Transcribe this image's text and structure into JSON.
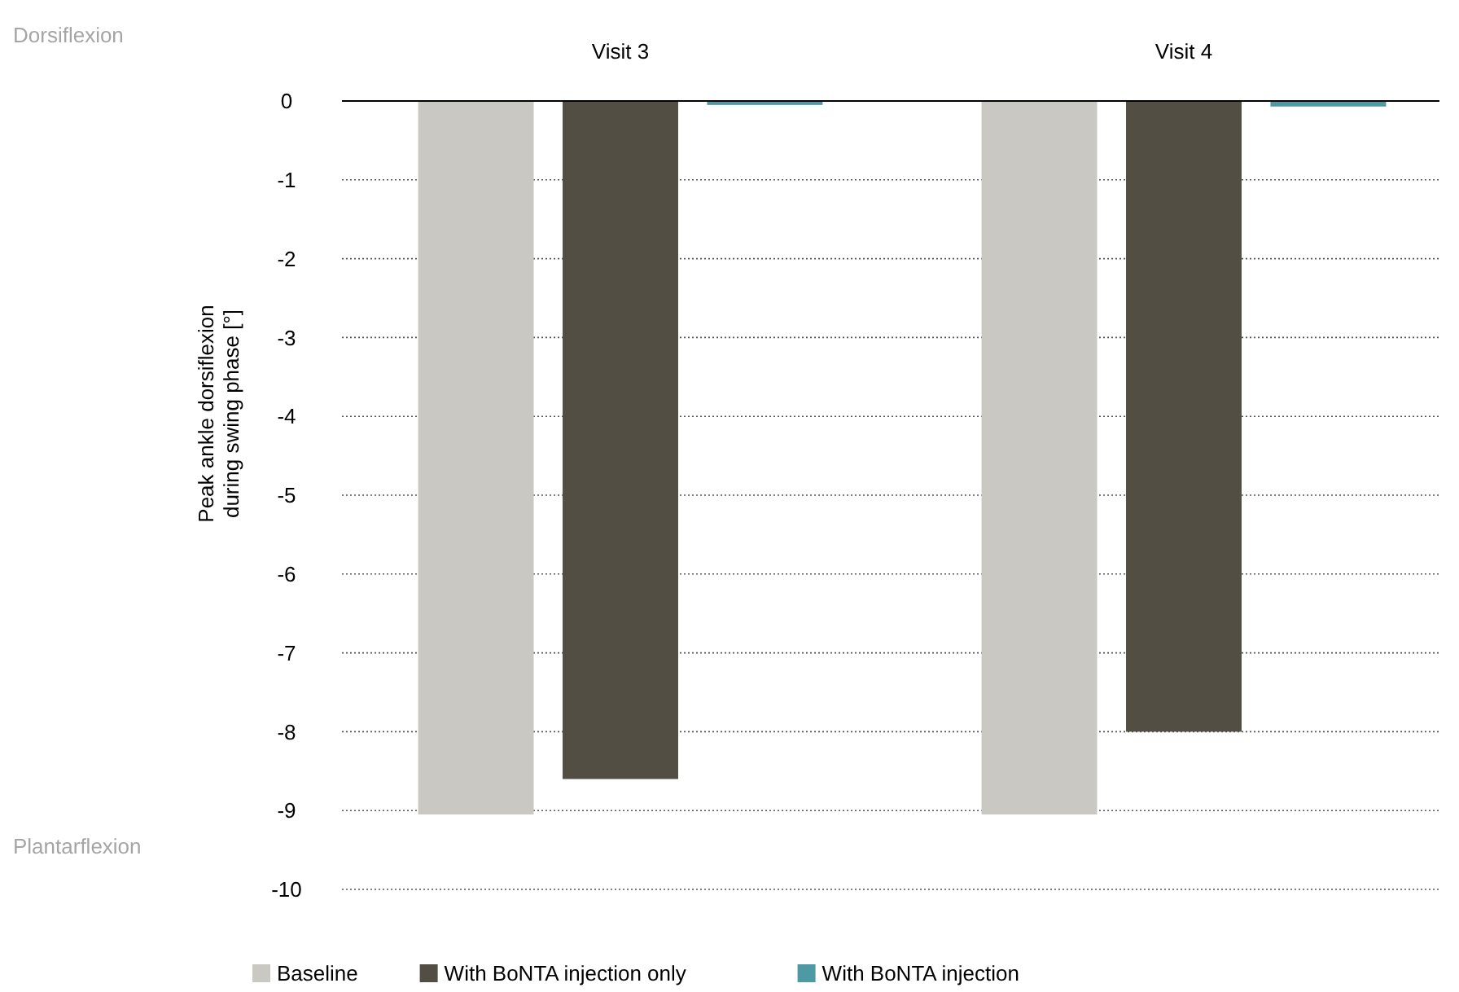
{
  "chart_data": {
    "type": "bar",
    "categories": [
      "Visit 3",
      "Visit 4"
    ],
    "series": [
      {
        "name": "Baseline",
        "color": "#c9c8c3",
        "values": [
          -9.05,
          -9.05
        ]
      },
      {
        "name": "With BoNTA injection only",
        "color": "#524e43",
        "values": [
          -8.6,
          -8.0
        ]
      },
      {
        "name": "With BoNTA injection",
        "color": "#4d9aa5",
        "values": [
          -0.05,
          -0.07
        ]
      }
    ],
    "ylabel": "Peak ankle dorsiflexion\nduring swing phase [°]",
    "ylim": [
      -10,
      0
    ],
    "yticks": [
      0,
      -1,
      -2,
      -3,
      -4,
      -5,
      -6,
      -7,
      -8,
      -9,
      -10
    ],
    "grid": "y",
    "legend": "bottom",
    "annotations": [
      "Dorsiflexion",
      "Plantarflexion"
    ]
  }
}
